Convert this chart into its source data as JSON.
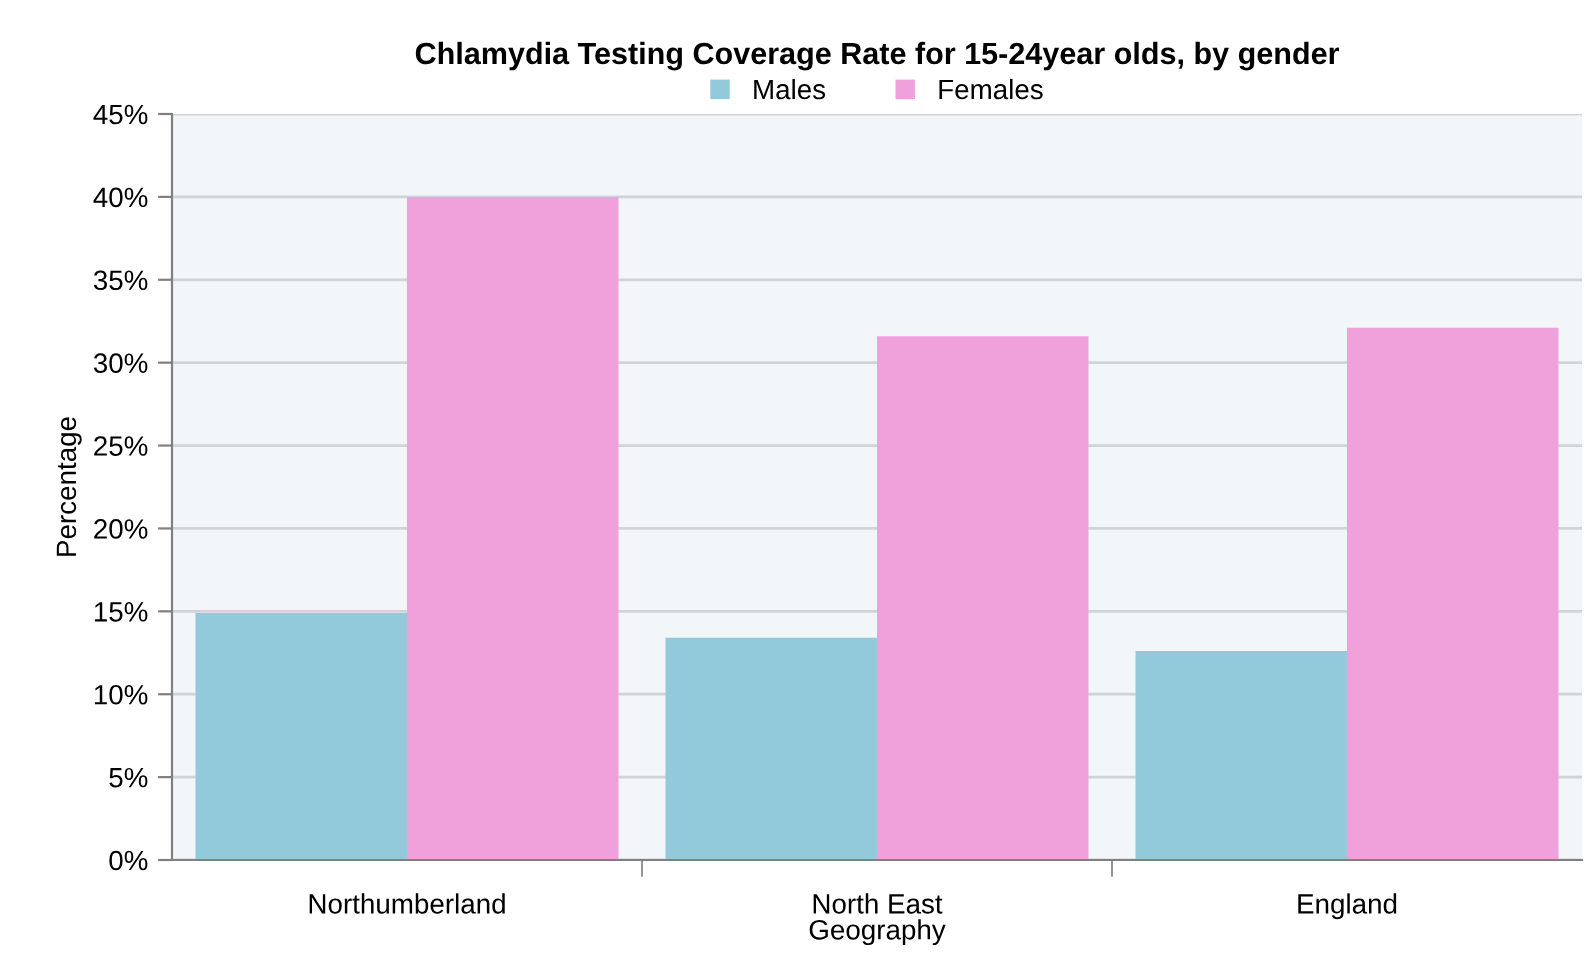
{
  "chart_data": {
    "type": "bar",
    "title": "Chlamydia Testing Coverage Rate for 15-24year olds, by gender",
    "xlabel": "Geography",
    "ylabel": "Percentage",
    "categories": [
      "Northumberland",
      "North East",
      "England"
    ],
    "series": [
      {
        "name": "Males",
        "color": "#92cadb",
        "values": [
          14.9,
          13.4,
          12.6
        ]
      },
      {
        "name": "Females",
        "color": "#f0a0da",
        "values": [
          40.0,
          31.6,
          32.1
        ]
      }
    ],
    "ylim": [
      0,
      45
    ],
    "yticks": [
      {
        "value": 0,
        "label": "0%"
      },
      {
        "value": 5,
        "label": "5%"
      },
      {
        "value": 10,
        "label": "10%"
      },
      {
        "value": 15,
        "label": "15%"
      },
      {
        "value": 20,
        "label": "20%"
      },
      {
        "value": 25,
        "label": "25%"
      },
      {
        "value": 30,
        "label": "30%"
      },
      {
        "value": 35,
        "label": "35%"
      },
      {
        "value": 40,
        "label": "40%"
      },
      {
        "value": 45,
        "label": "45%"
      }
    ],
    "grid": "y",
    "legend": "top"
  }
}
